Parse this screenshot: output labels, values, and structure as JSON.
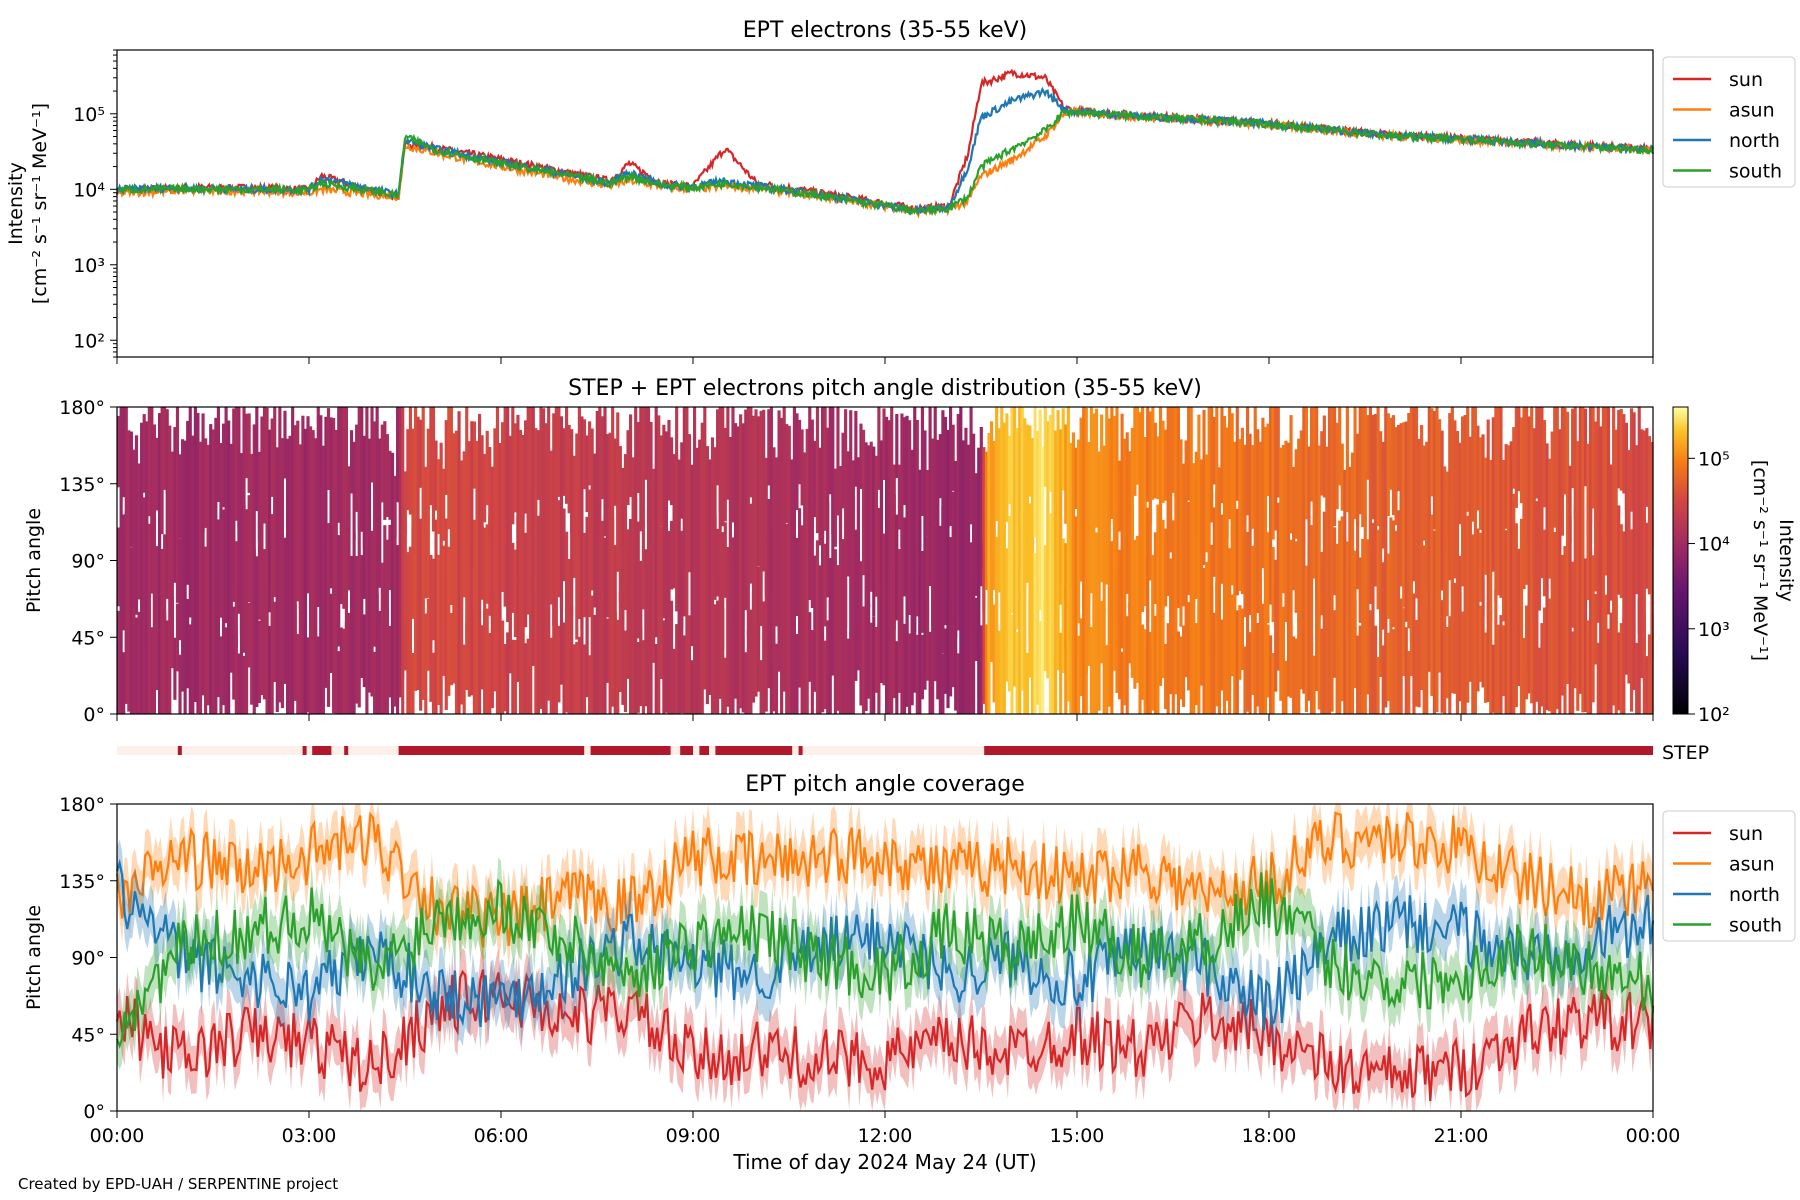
{
  "credit": "Created by EPD-UAH / SERPENTINE project",
  "xlabel": "Time of day 2024 May 24 (UT)",
  "x_ticks": [
    "00:00",
    "03:00",
    "06:00",
    "09:00",
    "12:00",
    "15:00",
    "18:00",
    "21:00",
    "00:00"
  ],
  "colors": {
    "sun": "#d62728",
    "asun": "#ff7f0e",
    "north": "#1f77b4",
    "south": "#2ca02c",
    "step": "#b2182b"
  },
  "chart_data": [
    {
      "type": "line",
      "title": "EPT electrons (35-55 keV)",
      "ylabel": "Intensity",
      "yunit": "[cm⁻² s⁻¹ sr⁻¹ MeV⁻¹]",
      "yscale": "log",
      "ylim": [
        60,
        700000
      ],
      "y_ticks": [
        "10²",
        "10³",
        "10⁴",
        "10⁵"
      ],
      "y_tick_values": [
        100,
        1000,
        10000,
        100000
      ],
      "xlim_hours": [
        0,
        24
      ],
      "legend": "outside-right",
      "x": [
        0,
        1,
        2,
        3,
        3.2,
        4,
        4.4,
        4.5,
        5,
        6,
        7,
        7.7,
        8,
        8.5,
        9,
        9.5,
        10,
        11,
        12,
        12.5,
        13,
        13.3,
        13.5,
        14,
        14.5,
        14.8,
        15,
        16,
        17,
        18,
        19,
        20,
        21,
        22,
        23,
        24
      ],
      "series": [
        {
          "name": "sun",
          "values": [
            9500,
            10500,
            10500,
            10000,
            15000,
            9500,
            8000,
            40000,
            35000,
            25000,
            17000,
            13000,
            22000,
            12000,
            11000,
            35000,
            12000,
            9000,
            6500,
            5500,
            6000,
            30000,
            250000,
            350000,
            300000,
            120000,
            110000,
            95000,
            85000,
            75000,
            62000,
            52000,
            48000,
            42000,
            38000,
            34000
          ]
        },
        {
          "name": "asun",
          "values": [
            9000,
            9500,
            9500,
            9000,
            10000,
            8500,
            8000,
            38000,
            30000,
            20000,
            14000,
            11000,
            13000,
            11000,
            10000,
            11000,
            10500,
            8000,
            6000,
            5000,
            5500,
            7000,
            15000,
            25000,
            50000,
            100000,
            105000,
            90000,
            82000,
            72000,
            60000,
            50000,
            46000,
            40000,
            36000,
            33000
          ]
        },
        {
          "name": "north",
          "values": [
            10000,
            10500,
            10000,
            10000,
            14000,
            10000,
            8500,
            45000,
            34000,
            23000,
            16000,
            12000,
            17000,
            11500,
            11000,
            13000,
            11000,
            8500,
            6200,
            5200,
            5800,
            20000,
            90000,
            150000,
            200000,
            115000,
            108000,
            93000,
            84000,
            74000,
            61000,
            51000,
            47000,
            41000,
            37000,
            33500
          ]
        },
        {
          "name": "south",
          "values": [
            9800,
            10200,
            10000,
            9800,
            12000,
            9500,
            8200,
            50000,
            33000,
            22000,
            15500,
            12000,
            15000,
            11500,
            10500,
            12000,
            10800,
            8200,
            6100,
            5100,
            5600,
            8000,
            20000,
            35000,
            60000,
            105000,
            106000,
            92000,
            83000,
            73000,
            60500,
            50500,
            46500,
            40500,
            36500,
            33000
          ]
        }
      ]
    },
    {
      "type": "heatmap",
      "title": "STEP + EPT electrons pitch angle distribution (35-55 keV)",
      "ylabel": "Pitch angle",
      "ylim": [
        0,
        180
      ],
      "y_ticks": [
        "0°",
        "45°",
        "90°",
        "135°",
        "180°"
      ],
      "y_tick_values": [
        0,
        45,
        90,
        135,
        180
      ],
      "colorbar_label": "Intensity",
      "colorbar_unit": "[cm⁻² s⁻¹ sr⁻¹ MeV⁻¹]",
      "colorbar_ticks": [
        "10²",
        "10³",
        "10⁴",
        "10⁵"
      ],
      "colorbar_tick_values": [
        100,
        1000,
        10000,
        100000
      ],
      "colorbar_range": [
        100,
        400000
      ],
      "colormap": "inferno",
      "intensity_x": [
        0,
        4.4,
        4.5,
        13.5,
        13.6,
        14.5,
        15,
        24
      ],
      "intensity_values": [
        10000,
        10000,
        35000,
        8000,
        150000,
        300000,
        100000,
        35000
      ]
    },
    {
      "type": "bar",
      "label": "STEP",
      "segments_hours": [
        [
          0.95,
          1.0
        ],
        [
          2.9,
          2.95
        ],
        [
          3.05,
          3.35
        ],
        [
          3.55,
          3.6
        ],
        [
          4.4,
          7.3
        ],
        [
          7.4,
          8.65
        ],
        [
          8.8,
          9.0
        ],
        [
          9.1,
          9.25
        ],
        [
          9.35,
          10.55
        ],
        [
          10.65,
          10.65
        ]
      ]
    },
    {
      "type": "line",
      "title": "EPT pitch angle coverage",
      "ylabel": "Pitch angle",
      "ylim": [
        0,
        180
      ],
      "y_ticks": [
        "0°",
        "45°",
        "90°",
        "135°",
        "180°"
      ],
      "y_tick_values": [
        0,
        45,
        90,
        135,
        180
      ],
      "xlim_hours": [
        0,
        24
      ],
      "legend": "outside-right",
      "x": [
        0,
        1,
        2,
        3,
        4,
        5,
        6,
        7,
        8,
        9,
        10,
        11,
        12,
        13,
        14,
        15,
        16,
        17,
        18,
        19,
        20,
        21,
        22,
        23,
        24
      ],
      "series": [
        {
          "name": "sun",
          "values": [
            55,
            30,
            45,
            40,
            25,
            60,
            70,
            55,
            60,
            30,
            35,
            30,
            30,
            40,
            35,
            45,
            35,
            55,
            45,
            25,
            20,
            25,
            45,
            55,
            50
          ]
        },
        {
          "name": "asun",
          "values": [
            125,
            150,
            140,
            150,
            160,
            120,
            110,
            125,
            120,
            150,
            145,
            150,
            150,
            140,
            145,
            135,
            145,
            125,
            135,
            160,
            160,
            155,
            135,
            125,
            130
          ]
        },
        {
          "name": "north",
          "values": [
            130,
            90,
            80,
            70,
            95,
            70,
            65,
            80,
            100,
            85,
            80,
            95,
            105,
            80,
            90,
            75,
            95,
            85,
            60,
            100,
            110,
            105,
            90,
            100,
            110
          ]
        },
        {
          "name": "south",
          "values": [
            50,
            95,
            105,
            115,
            80,
            115,
            120,
            100,
            80,
            100,
            105,
            90,
            80,
            105,
            95,
            110,
            90,
            100,
            125,
            85,
            75,
            80,
            95,
            85,
            75
          ]
        }
      ]
    }
  ]
}
